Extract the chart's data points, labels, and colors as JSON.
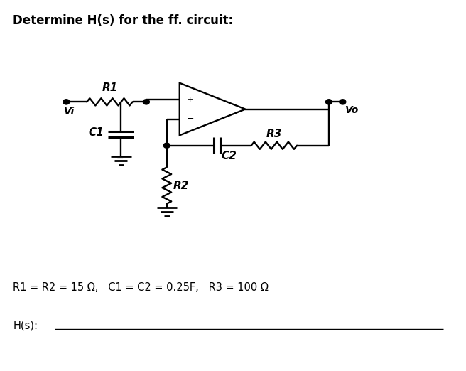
{
  "title": "Determine H(s) for the ff. circuit:",
  "params_text": "R1 = R2 = 15 Ω,   C1 = C2 = 0.25F,   R3 = 100 Ω",
  "hs_label": "H(s):",
  "background_color": "#ffffff",
  "line_color": "#000000",
  "figsize": [
    6.56,
    5.22
  ],
  "dpi": 100
}
